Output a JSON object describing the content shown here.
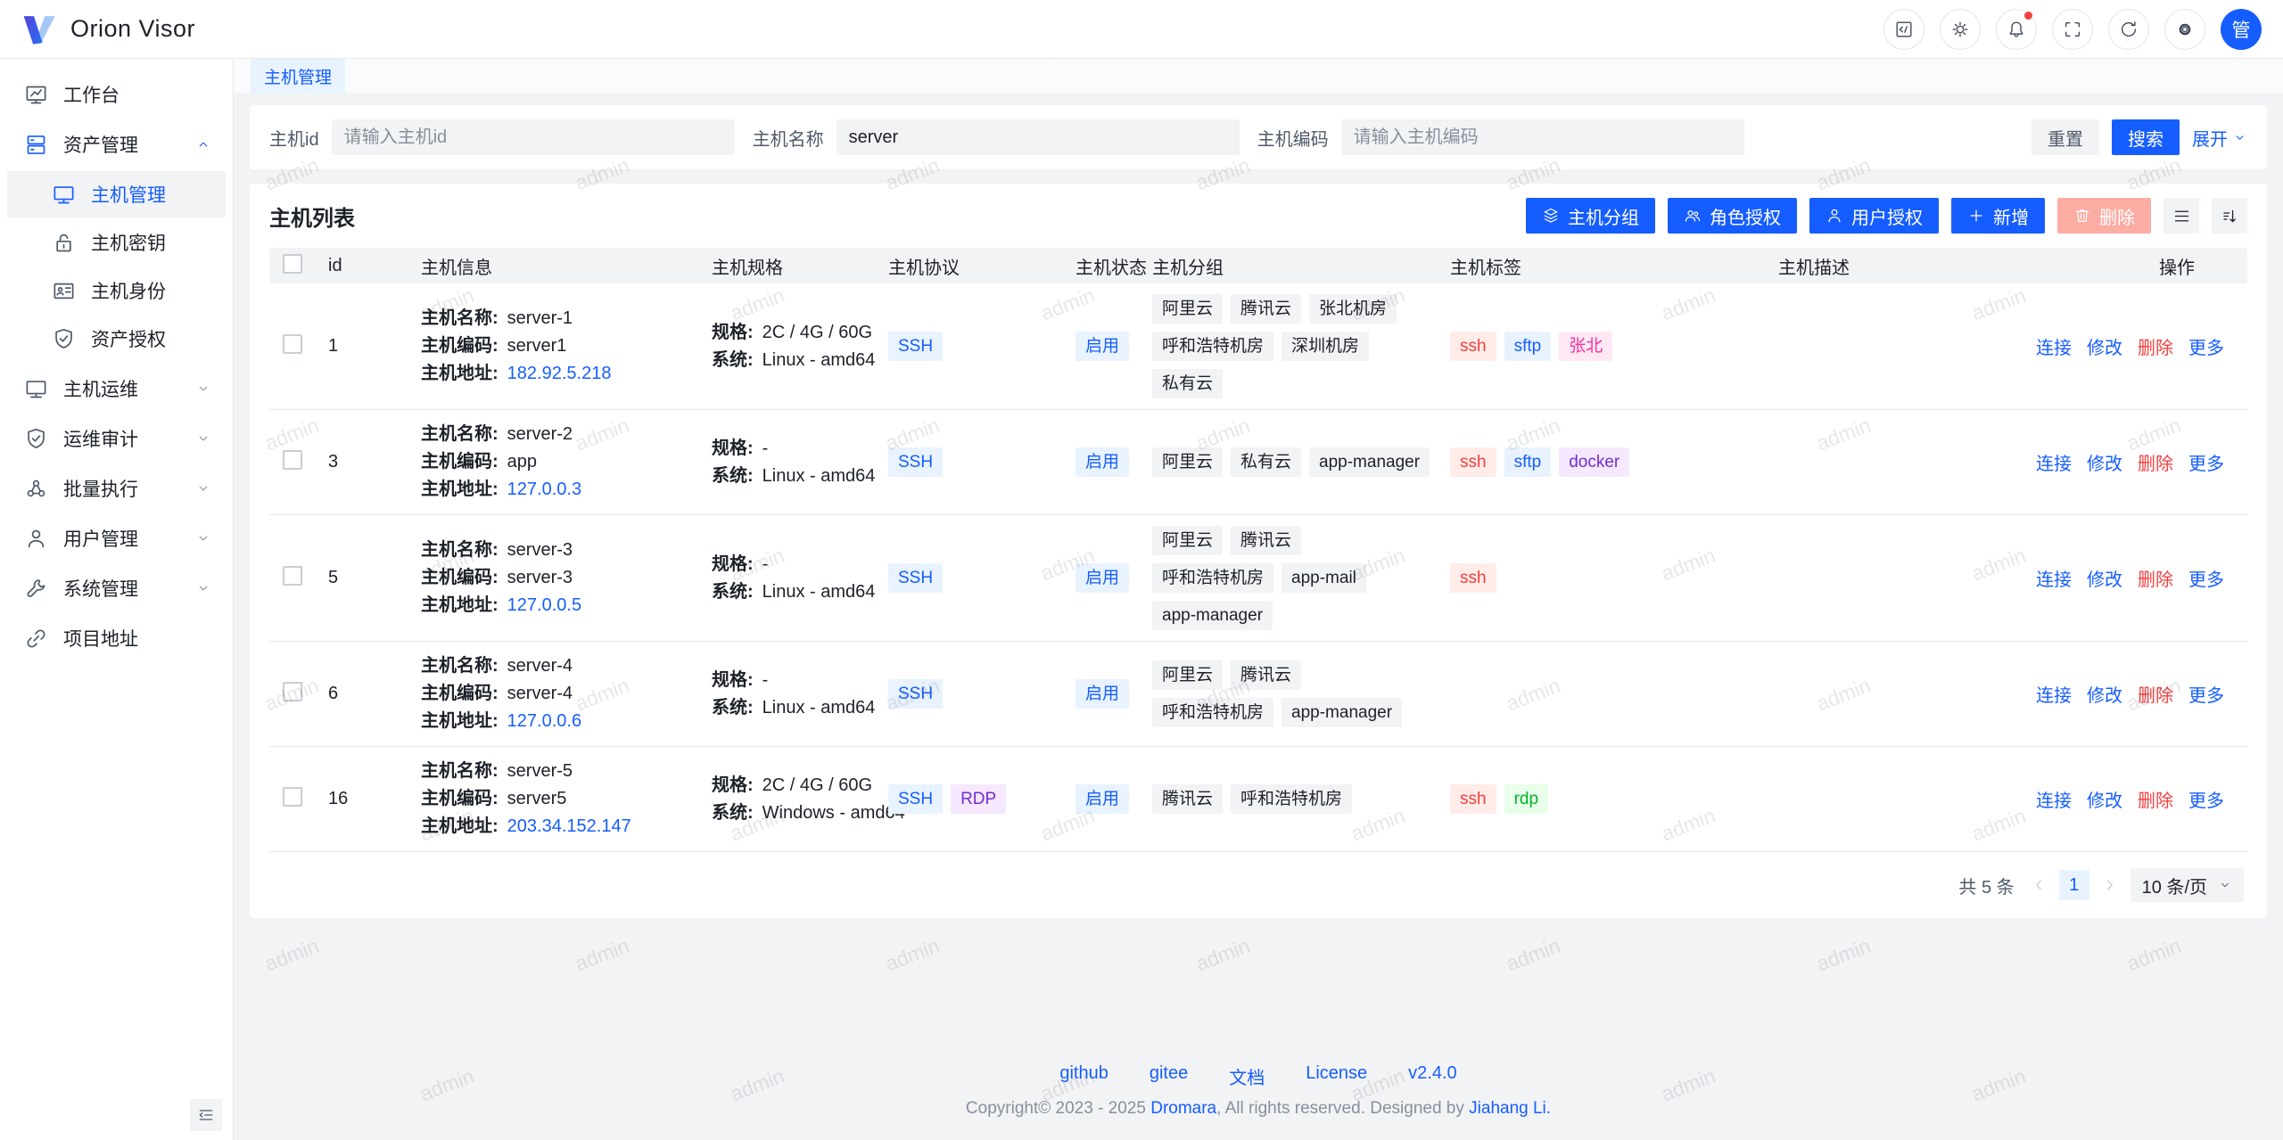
{
  "app": {
    "title": "Orion Visor"
  },
  "header": {
    "buttons": [
      {
        "icon": "code"
      },
      {
        "icon": "theme-sun"
      },
      {
        "icon": "notifications-bell",
        "badge": true
      },
      {
        "icon": "fullscreen"
      },
      {
        "icon": "refresh"
      },
      {
        "icon": "settings-gear"
      }
    ],
    "avatar_text": "管"
  },
  "sidebar": {
    "items": [
      {
        "label": "工作台",
        "icon": "workbench"
      },
      {
        "label": "资产管理",
        "icon": "asset-management",
        "expanded": true,
        "children": [
          {
            "label": "主机管理",
            "icon": "host-manage",
            "active": true
          },
          {
            "label": "主机密钥",
            "icon": "host-key"
          },
          {
            "label": "主机身份",
            "icon": "host-identity"
          },
          {
            "label": "资产授权",
            "icon": "asset-grant"
          }
        ]
      },
      {
        "label": "主机运维",
        "icon": "host-ops"
      },
      {
        "label": "运维审计",
        "icon": "ops-audit"
      },
      {
        "label": "批量执行",
        "icon": "batch-exec"
      },
      {
        "label": "用户管理",
        "icon": "user-manage"
      },
      {
        "label": "系统管理",
        "icon": "system-manage"
      },
      {
        "label": "项目地址",
        "icon": "project-link"
      }
    ],
    "collapse_icon": "menu-fold"
  },
  "tabs": [
    {
      "label": "主机管理",
      "active": true
    }
  ],
  "filters": {
    "fields": [
      {
        "label": "主机id",
        "placeholder": "请输入主机id",
        "value": ""
      },
      {
        "label": "主机名称",
        "placeholder": "",
        "value": "server"
      },
      {
        "label": "主机编码",
        "placeholder": "请输入主机编码",
        "value": ""
      }
    ],
    "reset_label": "重置",
    "search_label": "搜索",
    "expand_label": "展开"
  },
  "table": {
    "title": "主机列表",
    "toolbar": [
      {
        "label": "主机分组",
        "icon": "layers",
        "style": "primary"
      },
      {
        "label": "角色授权",
        "icon": "user-group",
        "style": "primary"
      },
      {
        "label": "用户授权",
        "icon": "user",
        "style": "primary"
      },
      {
        "label": "新增",
        "icon": "plus",
        "style": "primary"
      },
      {
        "label": "删除",
        "icon": "trash",
        "style": "danger-disabled"
      }
    ],
    "view_icons": [
      "list-view",
      "sort-alphabetical"
    ],
    "columns": [
      "id",
      "主机信息",
      "主机规格",
      "主机协议",
      "主机状态",
      "主机分组",
      "主机标签",
      "主机描述",
      "操作"
    ],
    "info_labels": {
      "name": "主机名称:",
      "code": "主机编码:",
      "address": "主机地址:"
    },
    "spec_labels": {
      "spec": "规格:",
      "system": "系统:"
    },
    "row_actions": [
      {
        "text": "连接",
        "type": "primary"
      },
      {
        "text": "修改",
        "type": "primary"
      },
      {
        "text": "删除",
        "type": "danger"
      },
      {
        "text": "更多",
        "type": "primary"
      }
    ],
    "rows": [
      {
        "id": "1",
        "name": "server-1",
        "code": "server1",
        "address": "182.92.5.218",
        "spec": "2C / 4G / 60G",
        "system": "Linux - amd64",
        "protocols": [
          {
            "text": "SSH",
            "type": "blue"
          }
        ],
        "status": {
          "text": "启用",
          "type": "blue"
        },
        "groups": [
          "阿里云",
          "腾讯云",
          "张北机房",
          "呼和浩特机房",
          "深圳机房",
          "私有云"
        ],
        "tags": [
          {
            "text": "ssh",
            "type": "red"
          },
          {
            "text": "sftp",
            "type": "blue"
          },
          {
            "text": "张北",
            "type": "magenta"
          }
        ],
        "description": ""
      },
      {
        "id": "3",
        "name": "server-2",
        "code": "app",
        "address": "127.0.0.3",
        "spec": "-",
        "system": "Linux - amd64",
        "protocols": [
          {
            "text": "SSH",
            "type": "blue"
          }
        ],
        "status": {
          "text": "启用",
          "type": "blue"
        },
        "groups": [
          "阿里云",
          "私有云",
          "app-manager"
        ],
        "tags": [
          {
            "text": "ssh",
            "type": "red"
          },
          {
            "text": "sftp",
            "type": "blue"
          },
          {
            "text": "docker",
            "type": "purple"
          }
        ],
        "description": ""
      },
      {
        "id": "5",
        "name": "server-3",
        "code": "server-3",
        "address": "127.0.0.5",
        "spec": "-",
        "system": "Linux - amd64",
        "protocols": [
          {
            "text": "SSH",
            "type": "blue"
          }
        ],
        "status": {
          "text": "启用",
          "type": "blue"
        },
        "groups": [
          "阿里云",
          "腾讯云",
          "呼和浩特机房",
          "app-mail",
          "app-manager"
        ],
        "tags": [
          {
            "text": "ssh",
            "type": "red"
          }
        ],
        "description": ""
      },
      {
        "id": "6",
        "name": "server-4",
        "code": "server-4",
        "address": "127.0.0.6",
        "spec": "-",
        "system": "Linux - amd64",
        "protocols": [
          {
            "text": "SSH",
            "type": "blue"
          }
        ],
        "status": {
          "text": "启用",
          "type": "blue"
        },
        "groups": [
          "阿里云",
          "腾讯云",
          "呼和浩特机房",
          "app-manager"
        ],
        "tags": [],
        "description": ""
      },
      {
        "id": "16",
        "name": "server-5",
        "code": "server5",
        "address": "203.34.152.147",
        "spec": "2C / 4G / 60G",
        "system": "Windows - amd64",
        "protocols": [
          {
            "text": "SSH",
            "type": "blue"
          },
          {
            "text": "RDP",
            "type": "purple"
          }
        ],
        "status": {
          "text": "启用",
          "type": "blue"
        },
        "groups": [
          "腾讯云",
          "呼和浩特机房"
        ],
        "tags": [
          {
            "text": "ssh",
            "type": "red"
          },
          {
            "text": "rdp",
            "type": "green"
          }
        ],
        "description": ""
      }
    ],
    "pagination": {
      "total": "共 5 条",
      "page": "1",
      "page_size": "10 条/页"
    }
  },
  "footer": {
    "links": [
      "github",
      "gitee",
      "文档",
      "License",
      "v2.4.0"
    ],
    "copyright": {
      "prefix": "Copyright© 2023 - 2025 ",
      "org": "Dromara",
      "middle": ", All rights reserved. Designed by ",
      "author": "Jiahang Li."
    }
  },
  "watermark": {
    "text": "admin"
  },
  "colors": {
    "primary": "#165dff",
    "danger": "#f53f3f",
    "tag_types": {
      "blue": {
        "bg": "#e8f3ff",
        "fg": "#165dff"
      },
      "red": {
        "bg": "#ffece8",
        "fg": "#f53f3f"
      },
      "magenta": {
        "bg": "#ffe8f4",
        "fg": "#f5319d"
      },
      "purple": {
        "bg": "#f5e8ff",
        "fg": "#722ed1"
      },
      "green": {
        "bg": "#e8ffea",
        "fg": "#00b42a"
      },
      "neutral": {
        "bg": "#f2f3f5",
        "fg": "#1d2129"
      }
    }
  }
}
